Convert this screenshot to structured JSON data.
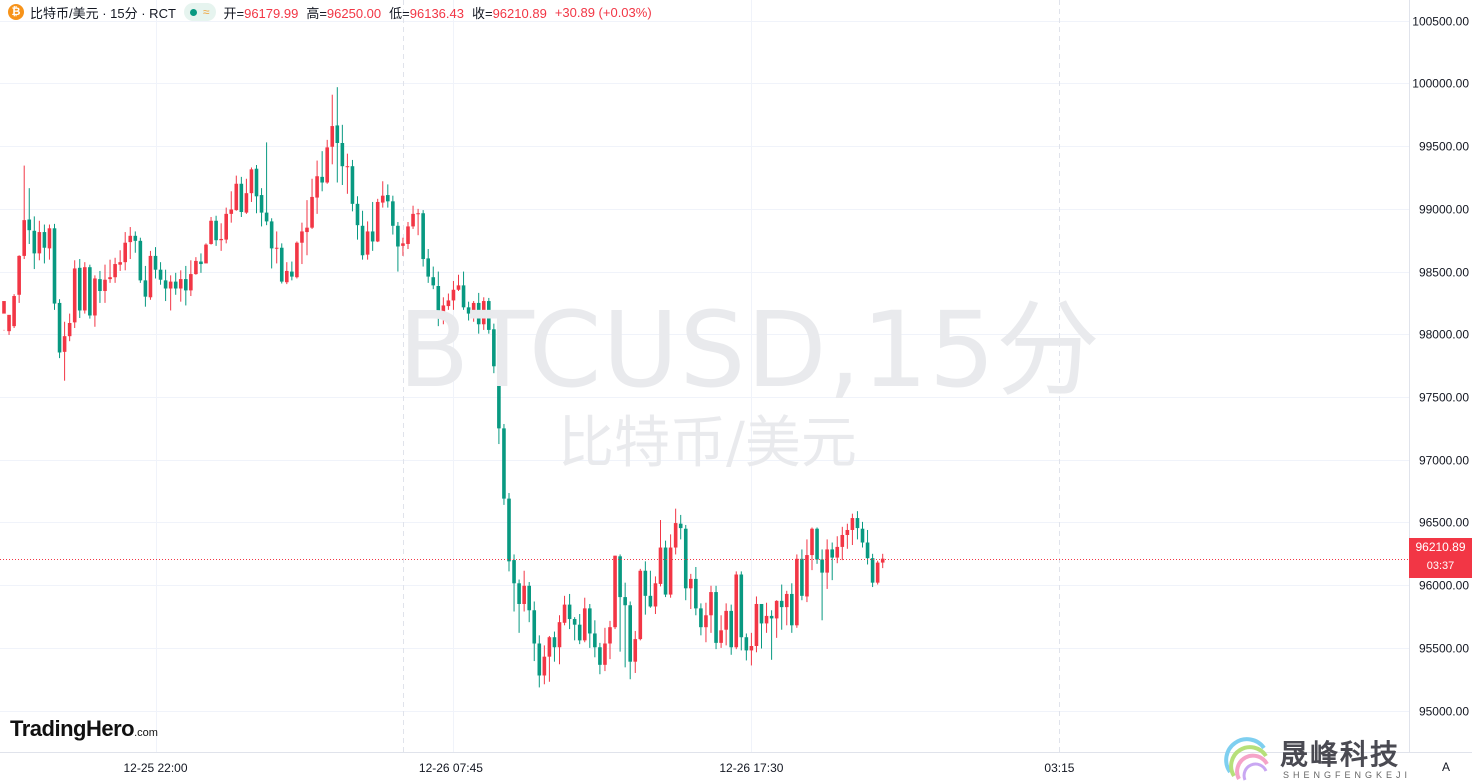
{
  "header": {
    "coin_icon": "₿",
    "symbol": "比特币/美元 · 15分 · RCT",
    "open_label": "开=",
    "open": "96179.99",
    "high_label": "高=",
    "high": "96250.00",
    "low_label": "低=",
    "low": "96136.43",
    "close_label": "收=",
    "close": "96210.89",
    "change": "+30.89 (+0.03%)"
  },
  "watermark": {
    "ticker": "BTCUSD,15分",
    "name": "比特币/美元"
  },
  "brand": {
    "main": "TradingHero",
    "suffix": ".com"
  },
  "last_price_tag": {
    "price": "96210.89",
    "countdown": "03:37"
  },
  "auto_scale_button": "A",
  "corner_logo": {
    "name": "晟峰科技",
    "sub": "SHENGFENGKEJI"
  },
  "colors": {
    "up": "#f23645",
    "down": "#089981",
    "grid": "#f0f3fa",
    "axis_text": "#131722"
  },
  "chart_data": {
    "type": "candlestick",
    "title": "BTCUSD,15分",
    "y_ticks": [
      100500,
      100000,
      99500,
      99000,
      98500,
      98000,
      97500,
      97000,
      96500,
      96000,
      95500,
      95000
    ],
    "ylim": [
      94670,
      100665
    ],
    "x_ticks": [
      "12-25 22:00",
      "12-26 07:45",
      "12-26 17:30",
      "03:15"
    ],
    "last_price": 96210.89,
    "candles": [
      [
        98165,
        98265,
        98035,
        98030
      ],
      [
        98025,
        98155,
        98030,
        97995
      ],
      [
        98065,
        98305,
        98320,
        98050
      ],
      [
        98315,
        98625,
        98630,
        98250
      ],
      [
        98625,
        98910,
        99345,
        98600
      ],
      [
        98915,
        98830,
        99165,
        98720
      ],
      [
        98825,
        98645,
        98940,
        98520
      ],
      [
        98645,
        98815,
        98905,
        98590
      ],
      [
        98815,
        98690,
        98875,
        98565
      ],
      [
        98685,
        98845,
        98875,
        98595
      ],
      [
        98845,
        98245,
        98880,
        98195
      ],
      [
        98250,
        97855,
        98280,
        97810
      ],
      [
        97860,
        97985,
        98100,
        97630
      ],
      [
        97985,
        98090,
        98165,
        97945
      ],
      [
        98095,
        98525,
        98590,
        98050
      ],
      [
        98530,
        98190,
        98600,
        98130
      ],
      [
        98190,
        98535,
        98575,
        98165
      ],
      [
        98535,
        98150,
        98555,
        98125
      ],
      [
        98150,
        98445,
        98470,
        98060
      ],
      [
        98440,
        98345,
        98505,
        98250
      ],
      [
        98345,
        98435,
        98555,
        98250
      ],
      [
        98440,
        98455,
        98595,
        98410
      ],
      [
        98455,
        98560,
        98610,
        98410
      ],
      [
        98555,
        98575,
        98670,
        98505
      ],
      [
        98575,
        98730,
        98815,
        98510
      ],
      [
        98735,
        98785,
        98855,
        98600
      ],
      [
        98785,
        98745,
        98820,
        98650
      ],
      [
        98745,
        98430,
        98770,
        98410
      ],
      [
        98430,
        98300,
        98545,
        98220
      ],
      [
        98295,
        98625,
        98665,
        98275
      ],
      [
        98625,
        98515,
        98695,
        98445
      ],
      [
        98515,
        98435,
        98575,
        98395
      ],
      [
        98430,
        98365,
        98515,
        98265
      ],
      [
        98365,
        98420,
        98470,
        98190
      ],
      [
        98420,
        98365,
        98490,
        98315
      ],
      [
        98365,
        98440,
        98510,
        98260
      ],
      [
        98440,
        98350,
        98545,
        98230
      ],
      [
        98350,
        98480,
        98590,
        98305
      ],
      [
        98480,
        98585,
        98615,
        98475
      ],
      [
        98580,
        98560,
        98645,
        98490
      ],
      [
        98565,
        98715,
        98725,
        98590
      ],
      [
        98720,
        98905,
        98935,
        98715
      ],
      [
        98905,
        98750,
        98945,
        98705
      ],
      [
        98750,
        98760,
        98885,
        98665
      ],
      [
        98755,
        98960,
        99010,
        98725
      ],
      [
        98960,
        98995,
        99140,
        98890
      ],
      [
        98990,
        99200,
        99265,
        98985
      ],
      [
        99200,
        98975,
        99255,
        98935
      ],
      [
        98970,
        99125,
        99240,
        98960
      ],
      [
        99125,
        99315,
        99330,
        99055
      ],
      [
        99320,
        99100,
        99350,
        98965
      ],
      [
        99110,
        98970,
        99165,
        98860
      ],
      [
        98970,
        98900,
        99530,
        98870
      ],
      [
        98900,
        98685,
        98925,
        98525
      ],
      [
        98685,
        98690,
        98820,
        98565
      ],
      [
        98690,
        98420,
        98725,
        98405
      ],
      [
        98415,
        98505,
        98575,
        98400
      ],
      [
        98500,
        98460,
        98580,
        98430
      ],
      [
        98455,
        98730,
        98740,
        98445
      ],
      [
        98730,
        98820,
        98890,
        98560
      ],
      [
        98815,
        98850,
        99070,
        98630
      ],
      [
        98850,
        99095,
        99240,
        98840
      ],
      [
        99090,
        99260,
        99385,
        98960
      ],
      [
        99255,
        99210,
        99460,
        99140
      ],
      [
        99210,
        99490,
        99550,
        99200
      ],
      [
        99495,
        99660,
        99910,
        99355
      ],
      [
        99665,
        99525,
        99970,
        99210
      ],
      [
        99525,
        99340,
        99670,
        99190
      ],
      [
        99340,
        99340,
        99440,
        99120
      ],
      [
        99340,
        99040,
        99390,
        98980
      ],
      [
        99040,
        98870,
        99100,
        98755
      ],
      [
        98865,
        98630,
        98985,
        98595
      ],
      [
        98635,
        98820,
        98900,
        98595
      ],
      [
        98820,
        98740,
        99055,
        98665
      ],
      [
        98740,
        99055,
        99080,
        98735
      ],
      [
        99050,
        99105,
        99220,
        99010
      ],
      [
        99110,
        99060,
        99195,
        99010
      ],
      [
        99060,
        98865,
        99105,
        98795
      ],
      [
        98865,
        98700,
        98895,
        98500
      ],
      [
        98705,
        98725,
        98770,
        98625
      ],
      [
        98720,
        98860,
        98895,
        98680
      ],
      [
        98860,
        98960,
        99025,
        98840
      ],
      [
        98960,
        98965,
        99000,
        98790
      ],
      [
        98965,
        98600,
        98990,
        98540
      ],
      [
        98605,
        98460,
        98680,
        98410
      ],
      [
        98455,
        98390,
        98540,
        98360
      ],
      [
        98385,
        98145,
        98500,
        98065
      ],
      [
        98145,
        98230,
        98295,
        98080
      ],
      [
        98225,
        98270,
        98325,
        98195
      ],
      [
        98270,
        98355,
        98425,
        98195
      ],
      [
        98355,
        98390,
        98475,
        98345
      ],
      [
        98390,
        98215,
        98500,
        98195
      ],
      [
        98215,
        98165,
        98260,
        98110
      ],
      [
        98165,
        98250,
        98265,
        98100
      ],
      [
        98250,
        98080,
        98330,
        98005
      ],
      [
        98080,
        98265,
        98295,
        98035
      ],
      [
        98265,
        98035,
        98290,
        98005
      ],
      [
        98040,
        97745,
        98085,
        97690
      ],
      [
        97740,
        97250,
        97805,
        97125
      ],
      [
        97250,
        96690,
        97285,
        96640
      ],
      [
        96690,
        96190,
        96735,
        96110
      ],
      [
        96200,
        96015,
        96245,
        95790
      ],
      [
        96015,
        95850,
        96045,
        95620
      ],
      [
        95850,
        95995,
        96115,
        95790
      ],
      [
        95995,
        95800,
        96025,
        95705
      ],
      [
        95800,
        95535,
        95870,
        95395
      ],
      [
        95535,
        95280,
        95600,
        95185
      ],
      [
        95280,
        95430,
        95520,
        95210
      ],
      [
        95430,
        95585,
        95595,
        95230
      ],
      [
        95585,
        95505,
        95630,
        95390
      ],
      [
        95505,
        95705,
        95760,
        95370
      ],
      [
        95700,
        95845,
        95915,
        95680
      ],
      [
        95845,
        95730,
        95930,
        95650
      ],
      [
        95730,
        95685,
        95745,
        95560
      ],
      [
        95685,
        95560,
        95770,
        95530
      ],
      [
        95560,
        95815,
        95900,
        95545
      ],
      [
        95815,
        95615,
        95850,
        95500
      ],
      [
        95615,
        95505,
        95720,
        95425
      ],
      [
        95505,
        95365,
        95540,
        95290
      ],
      [
        95365,
        95535,
        95660,
        95315
      ],
      [
        95535,
        95665,
        95715,
        95410
      ],
      [
        95665,
        96235,
        96235,
        95650
      ],
      [
        96230,
        95905,
        96245,
        95470
      ],
      [
        95905,
        95840,
        96020,
        95345
      ],
      [
        95840,
        95390,
        95870,
        95250
      ],
      [
        95390,
        95570,
        95635,
        95300
      ],
      [
        95570,
        96115,
        96130,
        95560
      ],
      [
        96115,
        95915,
        96190,
        95765
      ],
      [
        95915,
        95830,
        96115,
        95820
      ],
      [
        95830,
        96015,
        96070,
        95770
      ],
      [
        96010,
        96300,
        96520,
        95990
      ],
      [
        96300,
        95925,
        96355,
        95905
      ],
      [
        95925,
        96300,
        96405,
        95900
      ],
      [
        96300,
        96495,
        96610,
        96245
      ],
      [
        96490,
        96455,
        96560,
        96365
      ],
      [
        96450,
        95975,
        96480,
        95880
      ],
      [
        95975,
        96050,
        96090,
        95810
      ],
      [
        96050,
        95815,
        96145,
        95760
      ],
      [
        95815,
        95665,
        95855,
        95600
      ],
      [
        95665,
        95760,
        95860,
        95545
      ],
      [
        95760,
        95945,
        95995,
        95620
      ],
      [
        95945,
        95540,
        95995,
        95490
      ],
      [
        95540,
        95640,
        95760,
        95500
      ],
      [
        95645,
        95795,
        95855,
        95520
      ],
      [
        95795,
        95505,
        95845,
        95445
      ],
      [
        95505,
        96085,
        96110,
        95490
      ],
      [
        96085,
        95585,
        96110,
        95480
      ],
      [
        95585,
        95480,
        95615,
        95400
      ],
      [
        95480,
        95515,
        95620,
        95360
      ],
      [
        95515,
        95850,
        95910,
        95465
      ],
      [
        95850,
        95695,
        95840,
        95495
      ],
      [
        95695,
        95755,
        95860,
        95620
      ],
      [
        95755,
        95735,
        95800,
        95405
      ],
      [
        95735,
        95875,
        95880,
        95580
      ],
      [
        95875,
        95825,
        96005,
        95645
      ],
      [
        95825,
        95930,
        95955,
        95680
      ],
      [
        95930,
        95680,
        96015,
        95620
      ],
      [
        95680,
        96210,
        96245,
        95660
      ],
      [
        96210,
        95915,
        96285,
        95880
      ],
      [
        95910,
        96240,
        96365,
        95865
      ],
      [
        96240,
        96450,
        96460,
        96120
      ],
      [
        96450,
        96205,
        96460,
        96170
      ],
      [
        96205,
        96100,
        96285,
        95720
      ],
      [
        96100,
        96285,
        96365,
        95970
      ],
      [
        96285,
        96220,
        96340,
        96040
      ],
      [
        96220,
        96305,
        96390,
        96175
      ],
      [
        96305,
        96400,
        96465,
        96200
      ],
      [
        96400,
        96440,
        96490,
        96290
      ],
      [
        96440,
        96535,
        96570,
        96320
      ],
      [
        96535,
        96455,
        96590,
        96365
      ],
      [
        96450,
        96340,
        96505,
        96300
      ],
      [
        96340,
        96215,
        96440,
        96165
      ],
      [
        96215,
        96020,
        96250,
        95985
      ],
      [
        96020,
        96180,
        96195,
        96005
      ],
      [
        96180,
        96211,
        96250,
        96136
      ]
    ]
  }
}
